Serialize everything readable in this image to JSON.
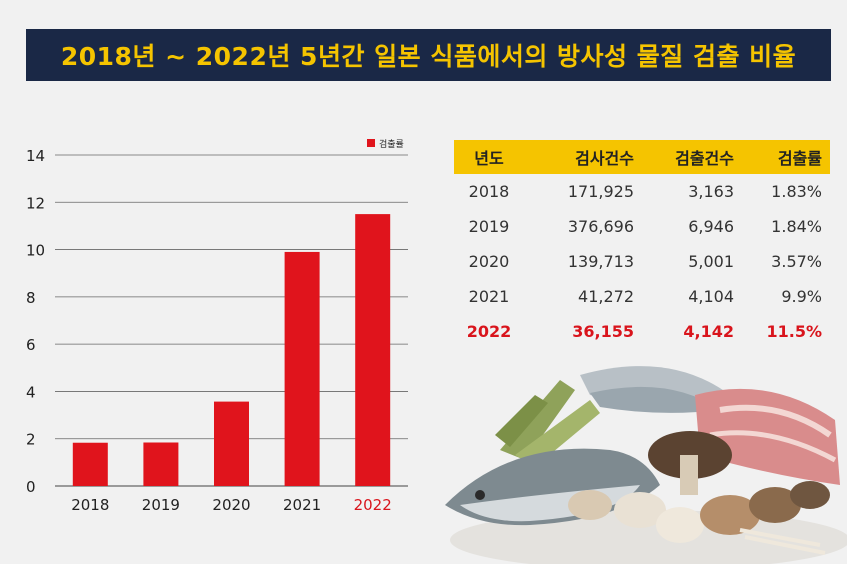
{
  "title": "2018년 ~ 2022년 5년간 일본 식품에서의 방사성 물질 검출 비율",
  "chart_data": {
    "type": "bar",
    "categories": [
      "2018",
      "2019",
      "2020",
      "2021",
      "2022"
    ],
    "series": [
      {
        "name": "검출률",
        "values": [
          1.83,
          1.84,
          3.57,
          9.9,
          11.5
        ]
      }
    ],
    "ylim": [
      0,
      14
    ],
    "yticks": [
      0,
      2,
      4,
      6,
      8,
      10,
      12,
      14
    ],
    "highlight_category": "2022",
    "legend_position": "top-right",
    "grid": true,
    "colors": {
      "bar": "#e0141c",
      "highlight_label": "#d9141c",
      "grid": "#666666"
    }
  },
  "table": {
    "headers": [
      "년도",
      "검사건수",
      "검출건수",
      "검출률"
    ],
    "rows": [
      [
        "2018",
        "171,925",
        "3,163",
        "1.83%"
      ],
      [
        "2019",
        "376,696",
        "6,946",
        "1.84%"
      ],
      [
        "2020",
        "139,713",
        "5,001",
        "3.57%"
      ],
      [
        "2021",
        "41,272",
        "4,104",
        "9.9%"
      ],
      [
        "2022",
        "36,155",
        "4,142",
        "11.5%"
      ]
    ],
    "highlight_row": 4
  }
}
